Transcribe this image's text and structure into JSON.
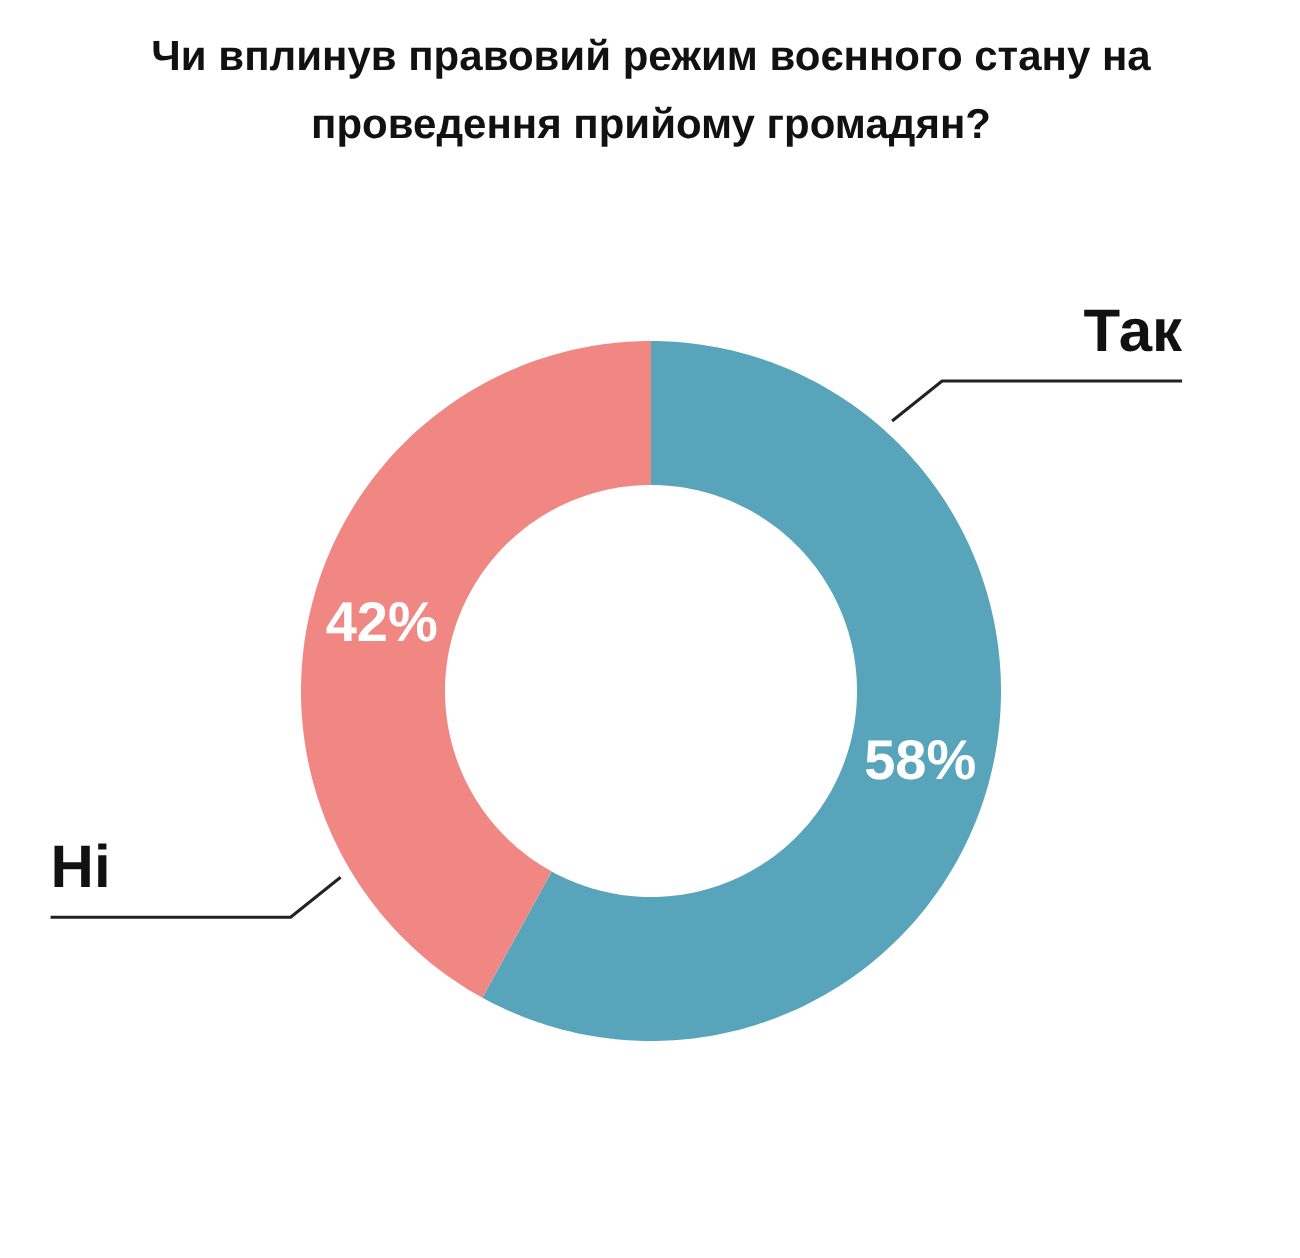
{
  "chart_data": {
    "type": "donut",
    "title": "Чи вплинув правовий режим воєнного стану на\nпроведення прийому громадян?",
    "categories": [
      "Так",
      "Ні"
    ],
    "values": [
      58,
      42
    ],
    "colors": [
      "#58a5bb",
      "#f08783"
    ],
    "value_labels": [
      "58%",
      "42%"
    ]
  }
}
